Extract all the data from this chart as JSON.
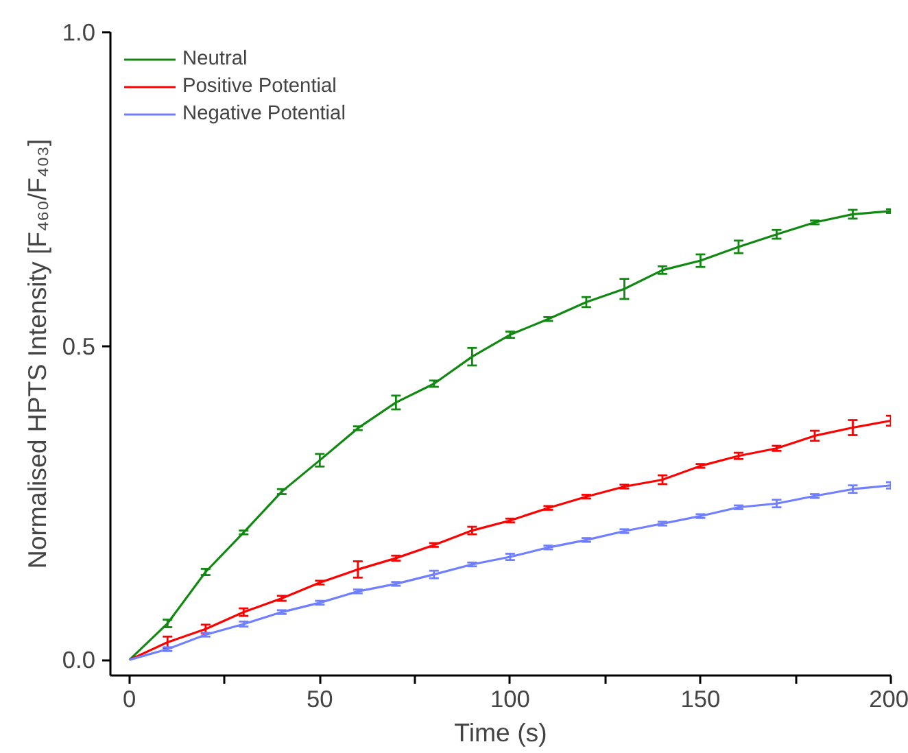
{
  "chart_data": {
    "type": "line",
    "xlabel": "Time (s)",
    "ylabel": "Normalised HPTS Intensity [F₄₆₀/F₄₀₃]",
    "x": [
      0,
      10,
      20,
      30,
      40,
      50,
      60,
      70,
      80,
      90,
      100,
      110,
      120,
      130,
      140,
      150,
      160,
      170,
      180,
      190,
      200
    ],
    "series": [
      {
        "name": "Neutral",
        "color": "#118811",
        "values": [
          0,
          0.058,
          0.14,
          0.203,
          0.268,
          0.318,
          0.369,
          0.41,
          0.44,
          0.483,
          0.518,
          0.543,
          0.57,
          0.591,
          0.621,
          0.636,
          0.658,
          0.678,
          0.697,
          0.71,
          0.715
        ],
        "errors": [
          null,
          0.006,
          0.005,
          0.003,
          0.004,
          0.01,
          0.003,
          0.011,
          0.005,
          0.014,
          0.005,
          0.003,
          0.008,
          0.016,
          0.006,
          0.01,
          0.01,
          0.007,
          0.003,
          0.007,
          0.003
        ]
      },
      {
        "name": "Positive Potential",
        "color": "#ff0000",
        "values": [
          0,
          0.028,
          0.049,
          0.076,
          0.098,
          0.123,
          0.144,
          0.162,
          0.183,
          0.206,
          0.222,
          0.242,
          0.26,
          0.276,
          0.287,
          0.309,
          0.325,
          0.337,
          0.357,
          0.37,
          0.381
        ],
        "errors": [
          null,
          0.009,
          0.007,
          0.006,
          0.004,
          0.003,
          0.013,
          0.004,
          0.003,
          0.006,
          0.003,
          0.003,
          0.003,
          0.003,
          0.007,
          0.003,
          0.005,
          0.004,
          0.008,
          0.012,
          0.008
        ]
      },
      {
        "name": "Negative Potential",
        "color": "#6f7fff",
        "values": [
          0,
          0.017,
          0.04,
          0.057,
          0.076,
          0.091,
          0.109,
          0.121,
          0.136,
          0.152,
          0.164,
          0.179,
          0.191,
          0.205,
          0.217,
          0.229,
          0.243,
          0.249,
          0.261,
          0.272,
          0.278
        ],
        "errors": [
          null,
          0.003,
          0.003,
          0.004,
          0.003,
          0.003,
          0.003,
          0.003,
          0.006,
          0.003,
          0.005,
          0.003,
          0.003,
          0.003,
          0.003,
          0.003,
          0.003,
          0.006,
          0.003,
          0.006,
          0.005
        ]
      }
    ],
    "xlim": [
      -5,
      200
    ],
    "ylim": [
      -0.025,
      1.0
    ],
    "xticks": [
      0,
      {
        "value": 25,
        "label": null
      },
      50,
      {
        "value": 75,
        "label": null
      },
      100,
      {
        "value": 125,
        "label": null
      },
      150,
      {
        "value": 175,
        "label": null
      },
      200
    ],
    "yticks": [
      {
        "value": 0,
        "label": "0.0"
      },
      0.5,
      {
        "value": 1,
        "label": "1.0"
      }
    ],
    "grid": false,
    "legend": "top left",
    "marker": "none",
    "line_style": "solid"
  }
}
